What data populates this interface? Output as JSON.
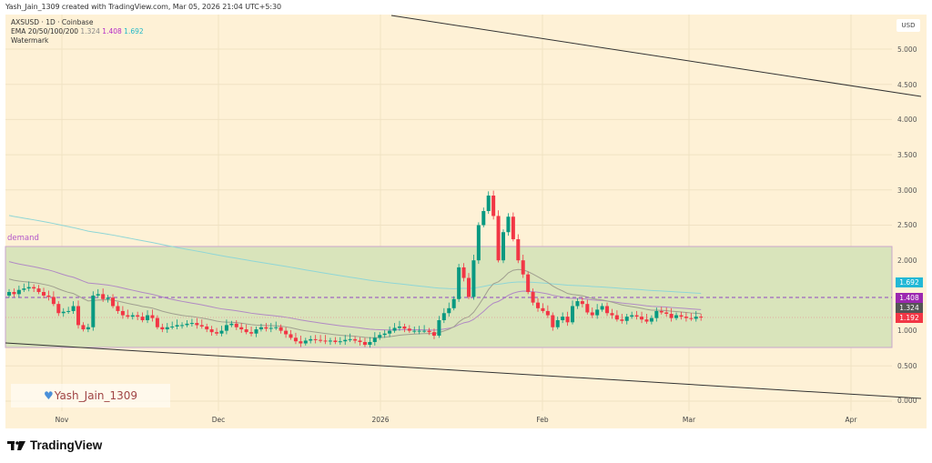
{
  "header": {
    "attribution": "Yash_Jain_1309 created with TradingView.com, Mar 05, 2026 21:04 UTC+5:30"
  },
  "legend": {
    "symbol_line": "AXSUSD · 1D · Coinbase",
    "ema_label": "EMA 20/50/100/200",
    "ema_values": [
      "1.324",
      "1.408",
      "1.692"
    ],
    "watermark_label": "Watermark"
  },
  "axis": {
    "currency": "USD",
    "price_ticks": [
      "5.000",
      "4.500",
      "4.000",
      "3.500",
      "3.000",
      "2.500",
      "2.000",
      "1.000",
      "0.500",
      "0.000"
    ],
    "time_ticks": [
      "Nov",
      "Dec",
      "2026",
      "Feb",
      "Mar",
      "Apr"
    ]
  },
  "price_badges": [
    {
      "value": "1.692",
      "color": "#22b8d6"
    },
    {
      "value": "1.408",
      "color": "#9c27b0"
    },
    {
      "value": "1.324",
      "color": "#555555"
    },
    {
      "value": "1.192",
      "color": "#f23645"
    }
  ],
  "annotations": {
    "zone_label": "demand",
    "watermark_text": "Yash_Jain_1309",
    "watermark_icon": "heart-icon"
  },
  "brand": {
    "name": "TradingView"
  },
  "colors": {
    "background": "#fef1d6",
    "demand_zone": "#d9e4bb",
    "up_candle": "#089981",
    "down_candle": "#f23645",
    "ema_fast": "#9e9e8e",
    "ema_mid": "#b18ac4",
    "ema_slow": "#8fd6d6"
  },
  "chart_data": {
    "type": "candlestick",
    "title": "AXSUSD · 1D · Coinbase",
    "ylabel": "USD",
    "ylim": [
      0,
      5.2
    ],
    "x_ticks": [
      "Nov",
      "Dec",
      "2026",
      "Feb",
      "Mar",
      "Apr"
    ],
    "y_ticks": [
      0,
      0.5,
      1.0,
      2.0,
      2.5,
      3.0,
      3.5,
      4.0,
      4.5,
      5.0
    ],
    "current_price": 1.192,
    "indicators": {
      "EMA20": 1.324,
      "EMA50": 1.408,
      "EMA200": 1.692
    },
    "demand_zone": {
      "top": 2.2,
      "bottom": 0.76
    },
    "trendlines": [
      {
        "name": "upper-descending",
        "from": {
          "x": "early Jan",
          "y": 5.48
        },
        "to": {
          "x": "mid Apr",
          "y": 4.35
        }
      },
      {
        "name": "lower-descending",
        "from": {
          "x": "mid Oct",
          "y": 0.83
        },
        "to": {
          "x": "mid Apr",
          "y": 0.05
        }
      }
    ],
    "key_points": [
      {
        "date": "Oct (start)",
        "close": 1.5
      },
      {
        "date": "Nov",
        "close": 1.35
      },
      {
        "date": "Dec",
        "close": 1.1
      },
      {
        "date": "late Dec",
        "low": 0.82
      },
      {
        "date": "mid Jan",
        "high": 2.3
      },
      {
        "date": "Jan 24",
        "high": 2.98
      },
      {
        "date": "Feb",
        "close": 1.6
      },
      {
        "date": "Mar 05",
        "close": 1.192
      }
    ]
  }
}
